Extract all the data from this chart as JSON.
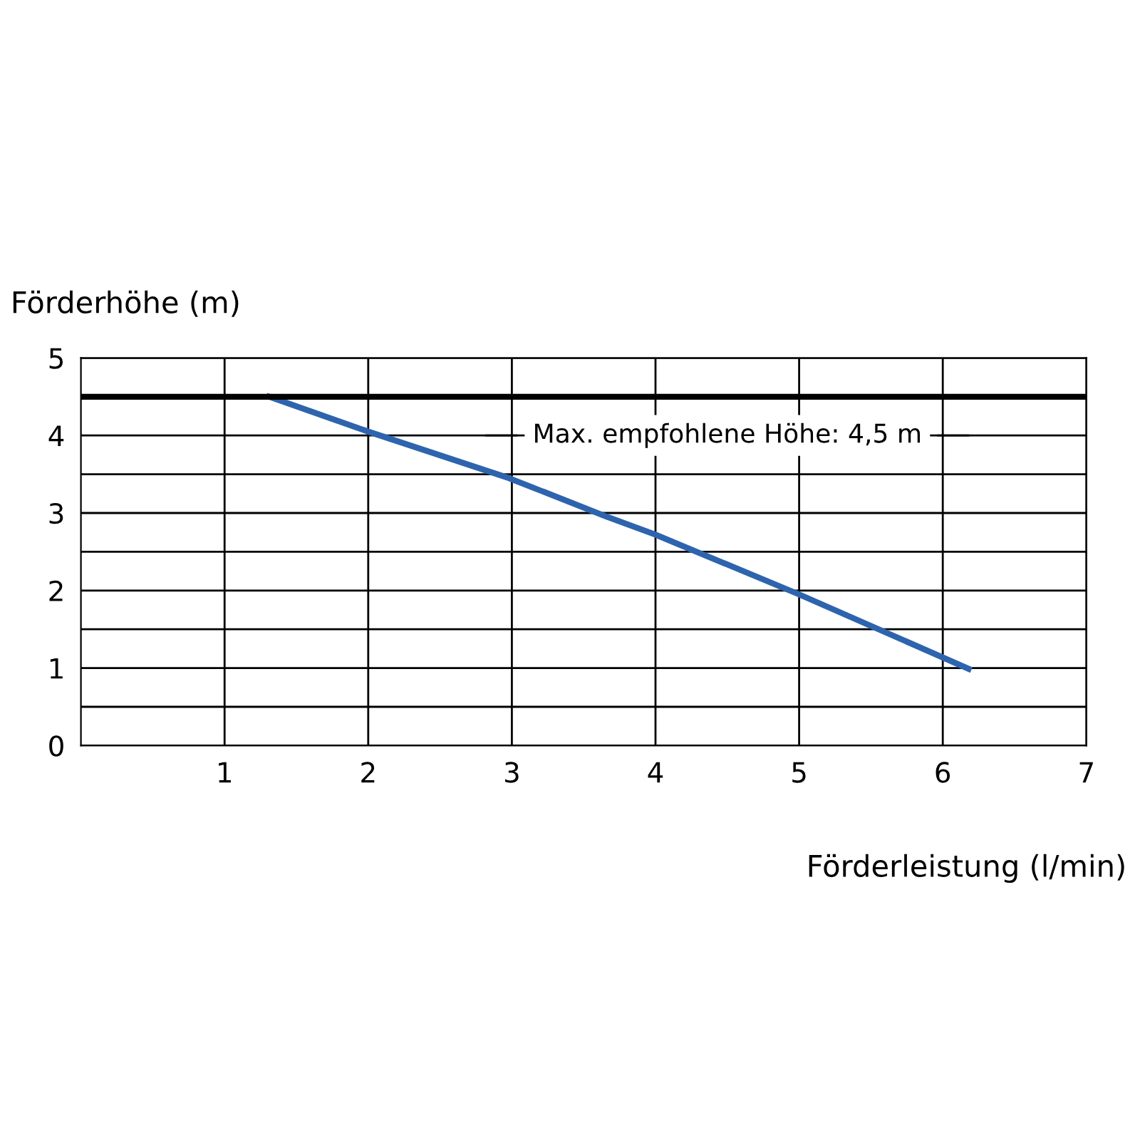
{
  "chart_data": {
    "type": "line",
    "xlabel": "Förderleistung (l/min)",
    "ylabel": "Förderhöhe (m)",
    "x": [
      1.31,
      2.0,
      2.98,
      3.65,
      4.0,
      5.0,
      6.18
    ],
    "series": [
      {
        "color": "#2e64ae",
        "values": [
          4.5,
          4.05,
          3.45,
          2.96,
          2.72,
          1.95,
          0.99
        ]
      }
    ],
    "xlim": [
      0,
      7
    ],
    "ylim": [
      0,
      5
    ],
    "xticks": [
      1,
      2,
      3,
      4,
      5,
      6,
      7
    ],
    "yticks": [
      0,
      {
        "value": 0.5,
        "label": null
      },
      1,
      {
        "value": 1.5,
        "label": null
      },
      2,
      {
        "value": 2.5,
        "label": null
      },
      3,
      {
        "value": 3.5,
        "label": null
      },
      4,
      {
        "value": 4.5,
        "label": null
      },
      5
    ],
    "grid": true,
    "marker": "none",
    "line_style": "solid",
    "ref_lines": [
      {
        "axis": "y",
        "value": 4.5,
        "label": "Max. empfohlene Höhe: 4,5 m",
        "color": "#000000"
      }
    ]
  }
}
